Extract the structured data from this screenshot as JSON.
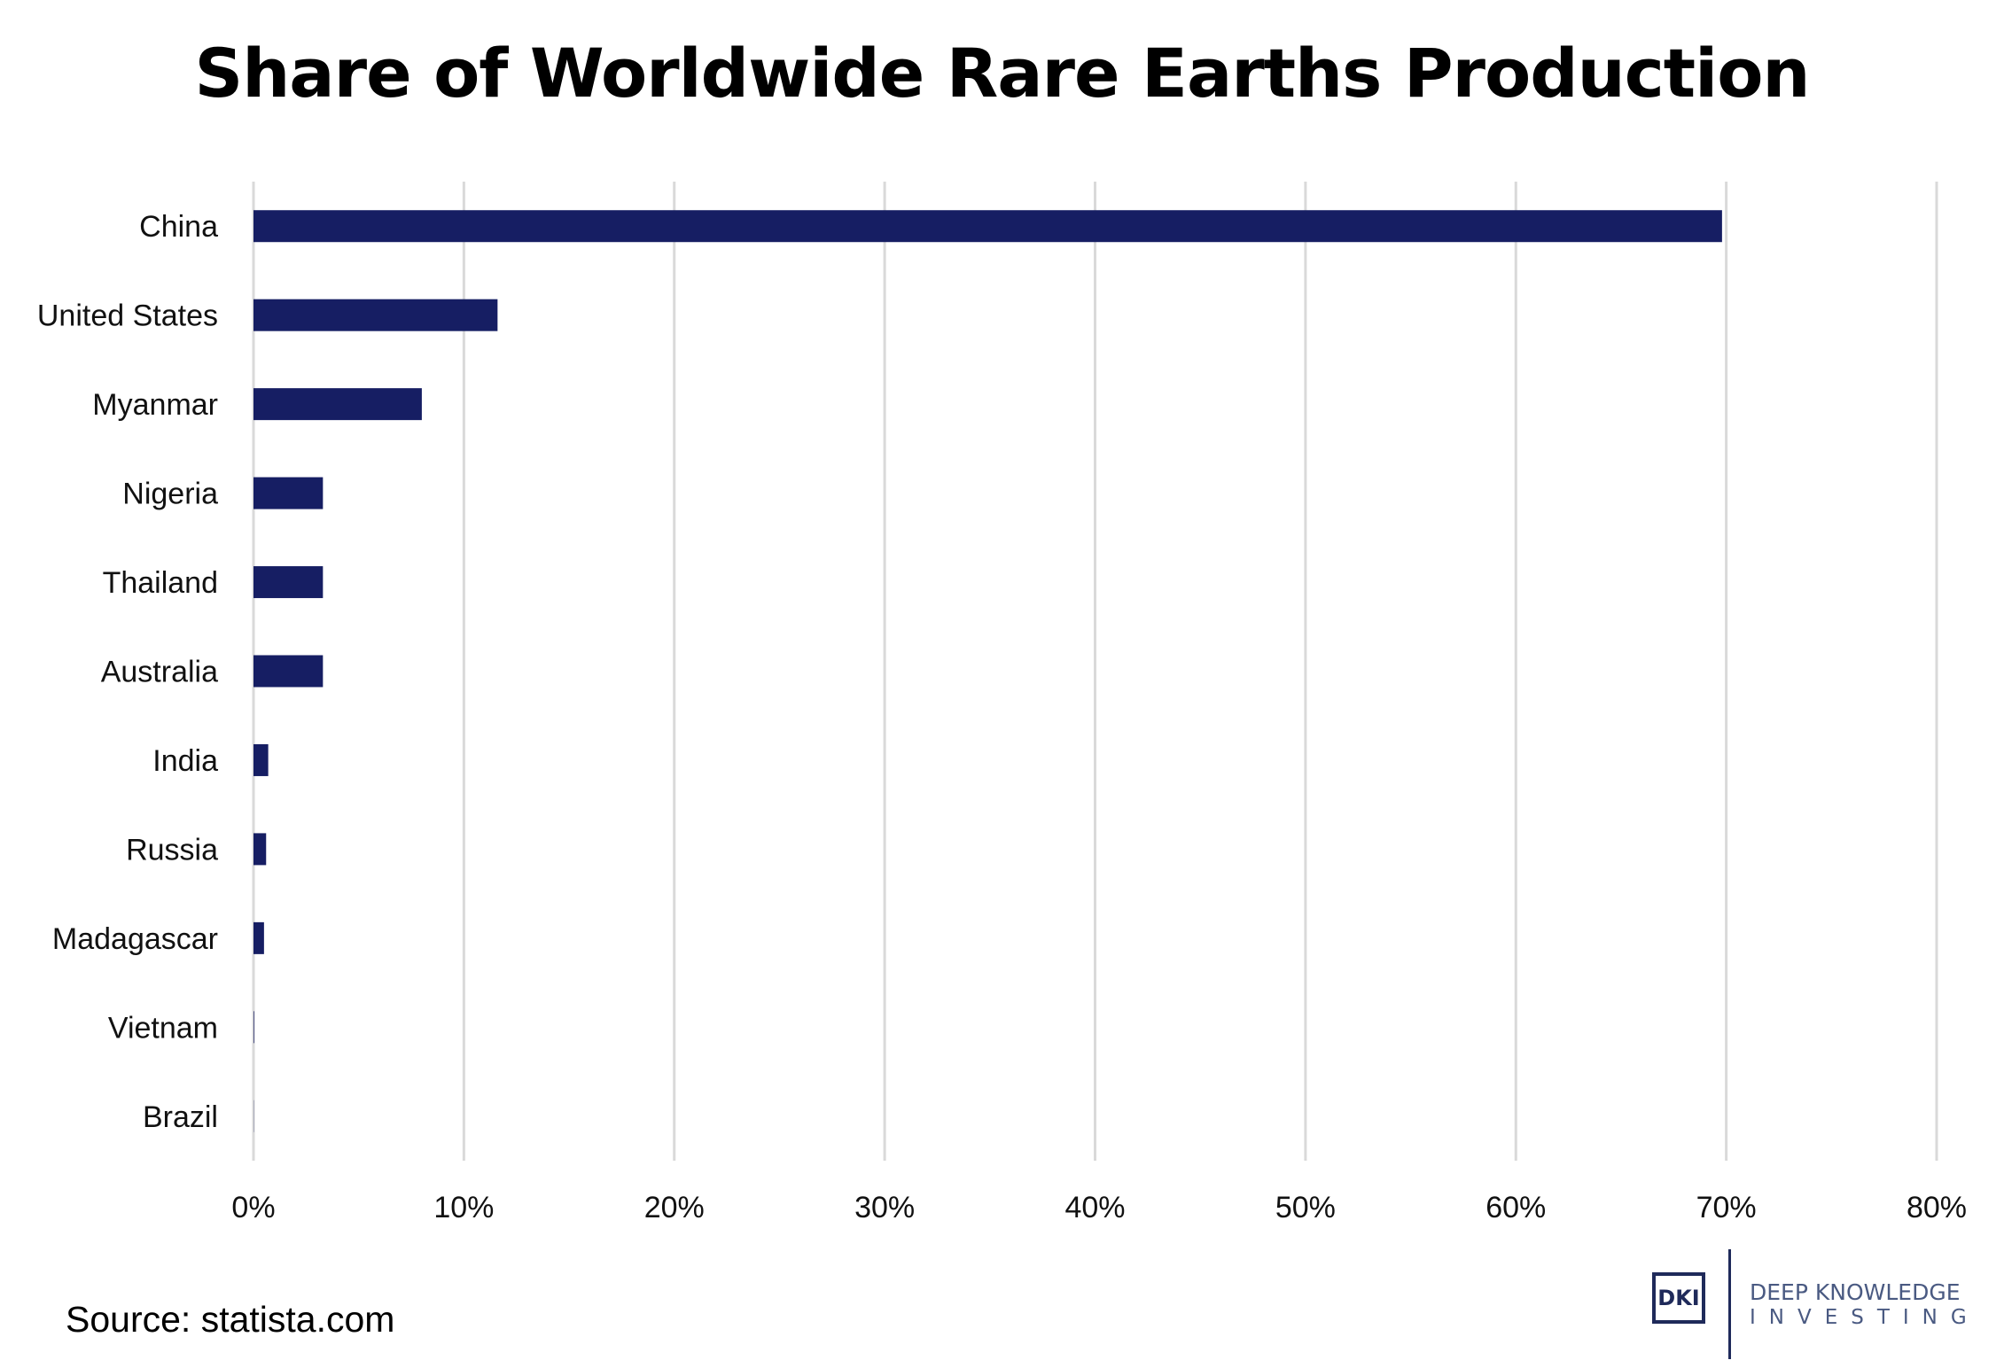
{
  "chart_data": {
    "type": "bar",
    "orientation": "horizontal",
    "title": "Share of Worldwide Rare Earths Production",
    "categories": [
      "China",
      "United States",
      "Myanmar",
      "Nigeria",
      "Thailand",
      "Australia",
      "India",
      "Russia",
      "Madagascar",
      "Vietnam",
      "Brazil"
    ],
    "values": [
      69.8,
      11.6,
      8.0,
      3.3,
      3.3,
      3.3,
      0.7,
      0.6,
      0.5,
      0.03,
      0.01
    ],
    "value_unit": "%",
    "xlim": [
      0,
      80
    ],
    "x_ticks": [
      "0%",
      "10%",
      "20%",
      "30%",
      "40%",
      "50%",
      "60%",
      "70%",
      "80%"
    ],
    "xlabel": "",
    "ylabel": "",
    "grid": "vertical",
    "legend": "none",
    "bar_color": "#161e63"
  },
  "footer": {
    "source": "Source: statista.com"
  },
  "logo": {
    "mark": "DKI",
    "line1": "DEEP KNOWLEDGE",
    "line2": "INVESTING"
  }
}
